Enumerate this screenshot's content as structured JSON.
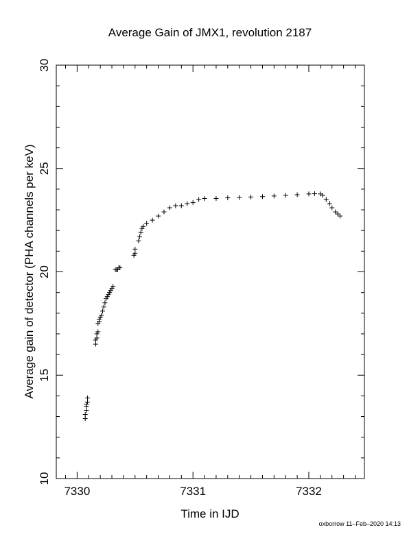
{
  "chart_data": {
    "type": "scatter",
    "title": "Average Gain of JMX1, revolution 2187",
    "xlabel": "Time in IJD",
    "ylabel": "Average gain of detector (PHA channels per keV)",
    "xlim": [
      7329.82,
      7332.48
    ],
    "ylim": [
      10,
      30
    ],
    "xticks": [
      7330,
      7331,
      7332
    ],
    "yticks": [
      10,
      15,
      20,
      25,
      30
    ],
    "grid": false,
    "marker": "+",
    "series": [
      {
        "x": [
          7330.07,
          7330.07,
          7330.08,
          7330.08,
          7330.08,
          7330.09,
          7330.09,
          7330.16,
          7330.16,
          7330.17,
          7330.17,
          7330.18,
          7330.18,
          7330.19,
          7330.19,
          7330.2,
          7330.21,
          7330.22,
          7330.23,
          7330.24,
          7330.25,
          7330.26,
          7330.27,
          7330.28,
          7330.29,
          7330.3,
          7330.31,
          7330.33,
          7330.34,
          7330.35,
          7330.36,
          7330.37,
          7330.49,
          7330.5,
          7330.5,
          7330.53,
          7330.54,
          7330.55,
          7330.56,
          7330.57,
          7330.6,
          7330.65,
          7330.7,
          7330.75,
          7330.8,
          7330.85,
          7330.9,
          7330.95,
          7331.0,
          7331.05,
          7331.1,
          7331.2,
          7331.3,
          7331.4,
          7331.5,
          7331.6,
          7331.7,
          7331.8,
          7331.9,
          7332.0,
          7332.05,
          7332.1,
          7332.12,
          7332.15,
          7332.18,
          7332.2,
          7332.23,
          7332.25,
          7332.27
        ],
        "y": [
          12.9,
          13.1,
          13.3,
          13.5,
          13.6,
          13.7,
          13.9,
          16.5,
          16.7,
          16.8,
          17.0,
          17.1,
          17.5,
          17.6,
          17.7,
          17.8,
          17.9,
          18.1,
          18.3,
          18.5,
          18.7,
          18.8,
          18.9,
          19.0,
          19.1,
          19.2,
          19.3,
          20.1,
          20.1,
          20.1,
          20.2,
          20.2,
          20.8,
          20.9,
          21.1,
          21.5,
          21.7,
          21.9,
          22.1,
          22.2,
          22.35,
          22.5,
          22.7,
          22.9,
          23.1,
          23.2,
          23.2,
          23.3,
          23.35,
          23.5,
          23.55,
          23.55,
          23.58,
          23.6,
          23.62,
          23.64,
          23.67,
          23.7,
          23.73,
          23.77,
          23.78,
          23.77,
          23.7,
          23.5,
          23.3,
          23.1,
          22.9,
          22.8,
          22.7
        ]
      }
    ]
  },
  "footer": "oxborrow 11–Feb–2020 14:13"
}
